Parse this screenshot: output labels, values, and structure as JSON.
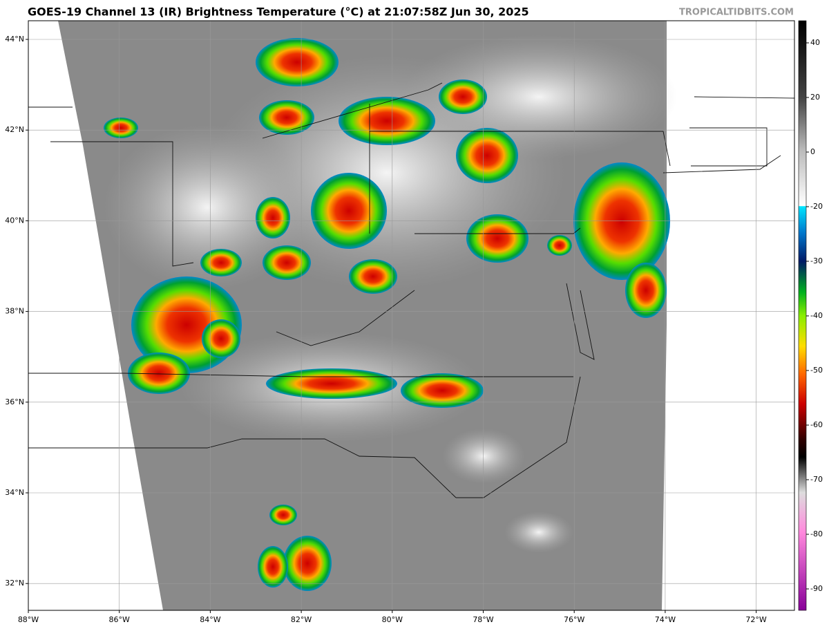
{
  "header": {
    "title": "GOES-19 Channel 13 (IR) Brightness Temperature (°C) at 21:07:58Z Jun 30, 2025",
    "source": "TROPICALTIDBITS.COM"
  },
  "map": {
    "lon_ticks": [
      {
        "value": -88,
        "label": "88°W"
      },
      {
        "value": -86,
        "label": "86°W"
      },
      {
        "value": -84,
        "label": "84°W"
      },
      {
        "value": -82,
        "label": "82°W"
      },
      {
        "value": -80,
        "label": "80°W"
      },
      {
        "value": -78,
        "label": "78°W"
      },
      {
        "value": -76,
        "label": "76°W"
      },
      {
        "value": -74,
        "label": "74°W"
      },
      {
        "value": -72,
        "label": "72°W"
      }
    ],
    "lat_ticks": [
      {
        "value": 44,
        "label": "44°N"
      },
      {
        "value": 42,
        "label": "42°N"
      },
      {
        "value": 40,
        "label": "40°N"
      },
      {
        "value": 38,
        "label": "38°N"
      },
      {
        "value": 36,
        "label": "36°N"
      },
      {
        "value": 34,
        "label": "34°N"
      },
      {
        "value": 32,
        "label": "32°N"
      }
    ]
  },
  "colorbar": {
    "ticks": [
      40,
      20,
      0,
      -20,
      -30,
      -40,
      -50,
      -60,
      -70,
      -80,
      -90
    ]
  }
}
